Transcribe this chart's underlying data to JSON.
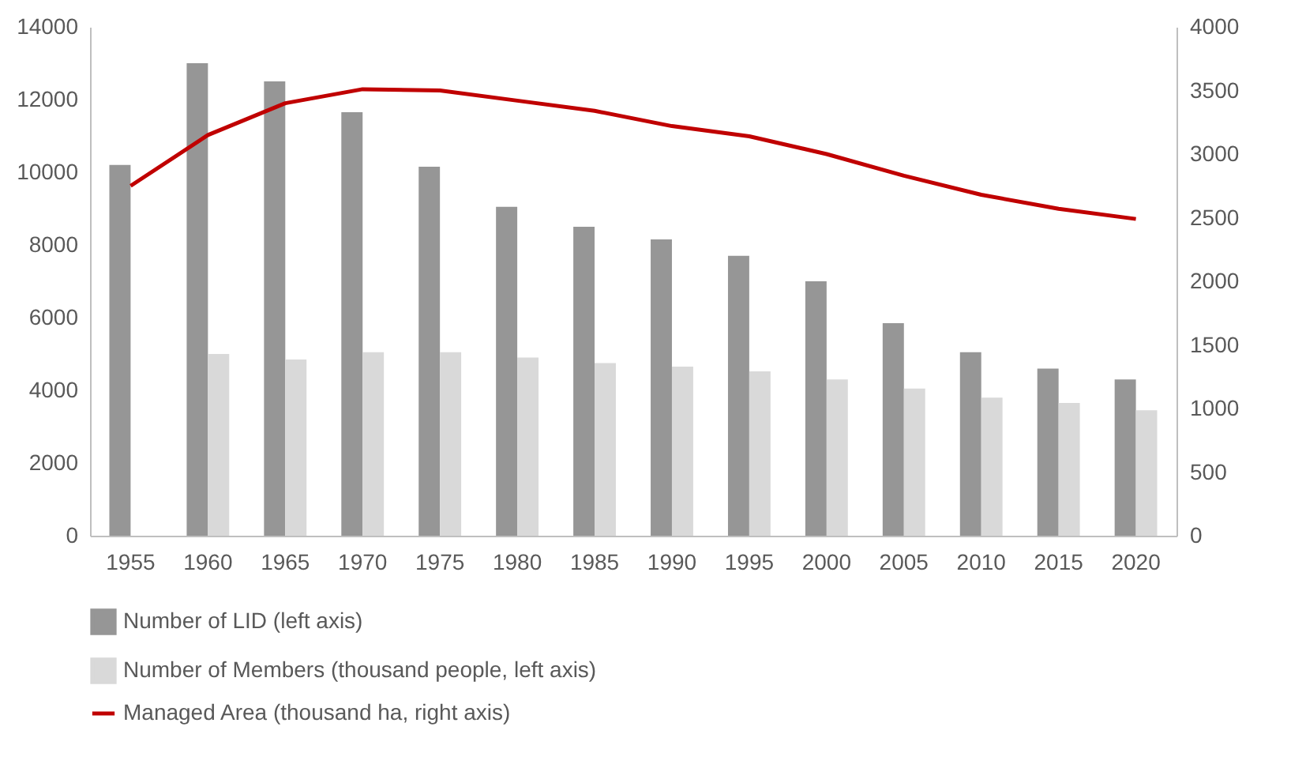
{
  "chart_data": {
    "type": "bar",
    "categories": [
      "1955",
      "1960",
      "1965",
      "1970",
      "1975",
      "1980",
      "1985",
      "1990",
      "1995",
      "2000",
      "2005",
      "2010",
      "2015",
      "2020"
    ],
    "series": [
      {
        "name": "Number of LID (left axis)",
        "color": "#969696",
        "values": [
          10200,
          13000,
          12500,
          11650,
          10150,
          9050,
          8500,
          8150,
          7700,
          7000,
          5850,
          5050,
          4600,
          4300
        ]
      },
      {
        "name": "Number of Members (thousand people, left axis)",
        "color": "#d9d9d9",
        "values": [
          null,
          5000,
          4850,
          5050,
          5050,
          4900,
          4750,
          4650,
          4520,
          4300,
          4050,
          3800,
          3650,
          3450
        ]
      },
      {
        "name": "Managed Area (thousand ha, right axis)",
        "type": "line",
        "axis": "y2",
        "color": "#c00000",
        "values": [
          2750,
          3150,
          3400,
          3510,
          3500,
          3420,
          3340,
          3220,
          3140,
          3000,
          2830,
          2680,
          2570,
          2490
        ]
      }
    ],
    "ylim": [
      0,
      14000
    ],
    "yticks": [
      0,
      2000,
      4000,
      6000,
      8000,
      10000,
      12000,
      14000
    ],
    "y2lim": [
      0,
      4000
    ],
    "y2ticks": [
      0,
      500,
      1000,
      1500,
      2000,
      2500,
      3000,
      3500,
      4000
    ],
    "grid": false,
    "legend": "bottom"
  }
}
